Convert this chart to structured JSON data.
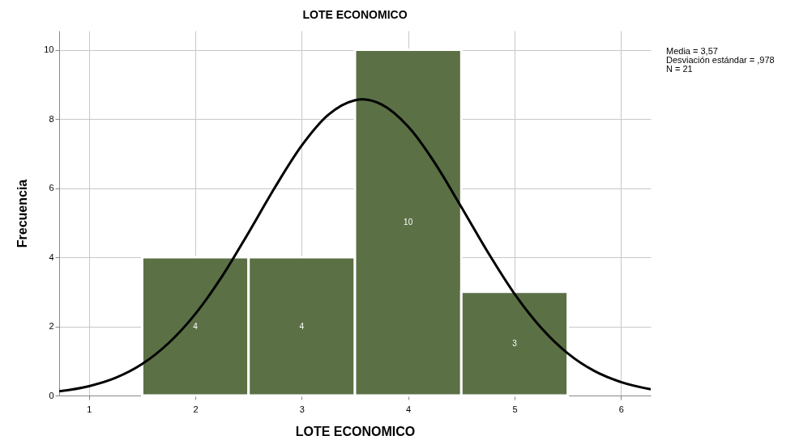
{
  "chart_data": {
    "type": "histogram",
    "title": "LOTE ECONOMICO",
    "xlabel": "LOTE ECONOMICO",
    "ylabel": "Frecuencia",
    "bins": [
      1.5,
      2.5,
      3.5,
      4.5,
      5.5
    ],
    "values": [
      4,
      4,
      10,
      3
    ],
    "value_labels": [
      "4",
      "4",
      "10",
      "3"
    ],
    "color": "#5b7045",
    "series": [
      {
        "type": "line",
        "color": "#000000",
        "x": [
          0.72,
          1.0,
          1.25,
          1.5,
          1.75,
          2.0,
          2.25,
          2.5,
          2.75,
          3.0,
          3.25,
          3.5,
          3.57,
          3.75,
          4.0,
          4.25,
          4.5,
          4.75,
          5.0,
          5.25,
          5.5,
          5.75,
          6.0,
          6.28
        ],
        "values": [
          0.12,
          0.27,
          0.51,
          0.91,
          1.52,
          2.36,
          3.44,
          4.71,
          6.03,
          7.23,
          8.12,
          8.54,
          8.57,
          8.42,
          7.78,
          6.73,
          5.45,
          4.14,
          2.94,
          1.96,
          1.22,
          0.71,
          0.39,
          0.18
        ]
      }
    ],
    "xlim": [
      0.72,
      6.28
    ],
    "xticks": [
      1,
      2,
      3,
      4,
      5,
      6
    ],
    "ylim": [
      0,
      10.55
    ],
    "yticks": [
      0,
      2,
      4,
      6,
      8,
      10
    ],
    "grid": true,
    "annotations": [
      "Media = 3,57",
      "Desviación estándar = ,978",
      "N = 21"
    ]
  }
}
